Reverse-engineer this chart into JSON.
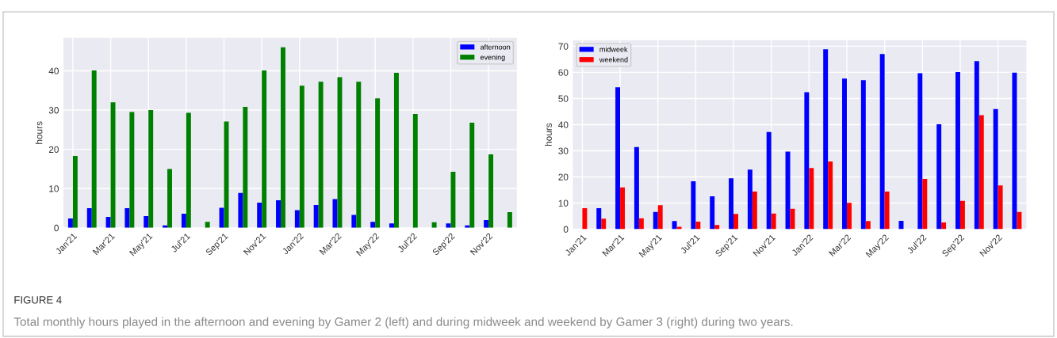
{
  "chart_data": [
    {
      "type": "bar",
      "ylabel": "hours",
      "categories": [
        "Jan'21",
        null,
        "Mar'21",
        null,
        "May'21",
        null,
        "Jul'21",
        null,
        "Sep'21",
        null,
        "Nov'21",
        null,
        "Jan'22",
        null,
        "Mar'22",
        null,
        "May'22",
        null,
        "Jul'22",
        null,
        "Sep'22",
        null,
        "Nov'22",
        null
      ],
      "series": [
        {
          "name": "afternoon",
          "color": "#0000ff",
          "values": [
            2.4,
            5,
            2.8,
            5,
            3,
            0.6,
            3.6,
            0,
            5.1,
            8.9,
            6.4,
            7,
            4.5,
            5.8,
            7.3,
            3.3,
            1.5,
            1.1,
            0,
            0,
            1.1,
            0.6,
            2,
            0
          ]
        },
        {
          "name": "evening",
          "color": "#008000",
          "values": [
            18.3,
            40.1,
            32,
            29.5,
            30,
            15,
            29.3,
            1.5,
            27.1,
            30.8,
            40.1,
            46,
            36.2,
            37.2,
            38.4,
            37.2,
            33,
            39.5,
            29,
            1.4,
            14.3,
            26.8,
            18.7,
            4
          ]
        }
      ],
      "ylim": [
        0,
        48.4
      ],
      "yticks": [
        0,
        10,
        20,
        30,
        40
      ],
      "grid": true,
      "legend": "top right"
    },
    {
      "type": "bar",
      "ylabel": "hours",
      "categories": [
        "Jan'21",
        null,
        "Mar'21",
        null,
        "May'21",
        null,
        "Jul'21",
        null,
        "Sep'21",
        null,
        "Nov'21",
        null,
        "Jan'22",
        null,
        "Mar'22",
        null,
        "May'22",
        null,
        "Jul'22",
        null,
        "Sep'22",
        null,
        "Nov'22",
        null
      ],
      "series": [
        {
          "name": "midweek",
          "color": "#0000ff",
          "values": [
            0,
            8,
            54.3,
            31.4,
            6.6,
            3.1,
            18.3,
            12.6,
            19.5,
            22.8,
            37.2,
            29.7,
            52.4,
            68.8,
            57.6,
            57,
            67,
            3.2,
            59.7,
            40.1,
            60.1,
            64.3,
            46,
            59.9
          ]
        },
        {
          "name": "weekend",
          "color": "#ff0000",
          "values": [
            8,
            4,
            16,
            4.2,
            9.2,
            0.9,
            2.9,
            1.6,
            5.8,
            14.4,
            6,
            7.8,
            23.4,
            25.9,
            10.1,
            3.1,
            14.4,
            0,
            19.2,
            2.6,
            10.8,
            43.6,
            16.7,
            6.6
          ]
        }
      ],
      "ylim": [
        0,
        72.3
      ],
      "yticks": [
        0,
        10,
        20,
        30,
        40,
        50,
        60,
        70
      ],
      "grid": true,
      "legend": "top left",
      "annotations": [
        "FIGURE 4",
        "Total monthly hours played in the afternoon and evening by Gamer 2 (left) and during midweek and weekend by Gamer 3 (right) during two years."
      ]
    }
  ]
}
